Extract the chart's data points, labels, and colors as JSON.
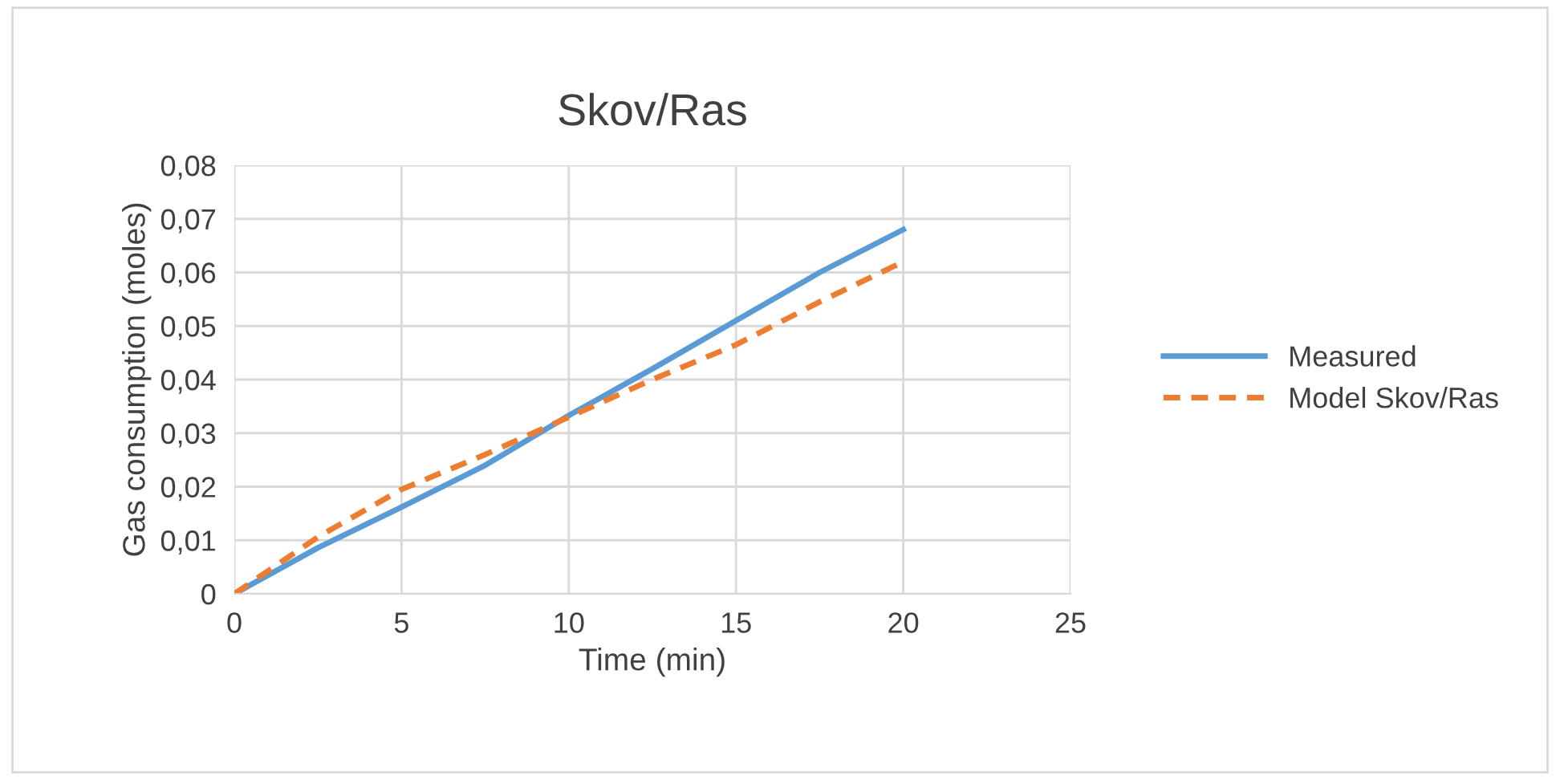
{
  "chart_data": {
    "type": "line",
    "title": "Skov/Ras",
    "xlabel": "Time (min)",
    "ylabel": "Gas consumption (moles)",
    "xlim": [
      0,
      25
    ],
    "xticks": [
      0,
      5,
      10,
      15,
      20,
      25
    ],
    "ylim": [
      0,
      0.08
    ],
    "yticks": [
      {
        "value": 0,
        "label": "0"
      },
      {
        "value": 0.01,
        "label": "0,01"
      },
      {
        "value": 0.02,
        "label": "0,02"
      },
      {
        "value": 0.03,
        "label": "0,03"
      },
      {
        "value": 0.04,
        "label": "0,04"
      },
      {
        "value": 0.05,
        "label": "0,05"
      },
      {
        "value": 0.06,
        "label": "0,06"
      },
      {
        "value": 0.07,
        "label": "0,07"
      },
      {
        "value": 0.08,
        "label": "0,08"
      }
    ],
    "grid": true,
    "legend": "right",
    "marker": "none",
    "series": [
      {
        "name": "Measured",
        "color": "#5b9bd5",
        "line_style": "solid",
        "x": [
          0,
          2.5,
          5,
          7.5,
          10,
          12.5,
          15,
          17.5,
          20
        ],
        "values": [
          0,
          0.0086,
          0.0162,
          0.024,
          0.0333,
          0.042,
          0.051,
          0.06,
          0.068
        ]
      },
      {
        "name": "Model Skov/Ras",
        "color": "#ed7d31",
        "line_style": "dashed",
        "x": [
          0,
          2.5,
          5,
          7.5,
          10,
          12.5,
          15,
          17.5,
          20
        ],
        "values": [
          0,
          0.0106,
          0.0195,
          0.026,
          0.033,
          0.04,
          0.0465,
          0.0545,
          0.062
        ]
      }
    ]
  }
}
